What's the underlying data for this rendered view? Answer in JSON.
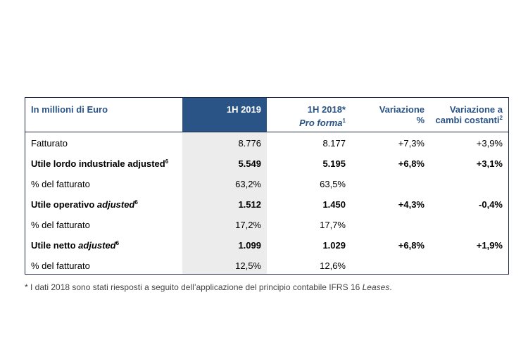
{
  "header": {
    "col0": "In millioni di Euro",
    "col1": "1H 2019",
    "col2_line1": "1H 2018*",
    "col2_line2": "Pro forma",
    "col2_sup": "1",
    "col3_line1": "Variazione",
    "col3_line2": "%",
    "col4_line1": "Variazione a",
    "col4_line2": "cambi costanti",
    "col4_sup": "2"
  },
  "rows": [
    {
      "label": "Fatturato",
      "label_italic": "",
      "sup": "",
      "v2019": "8.776",
      "v2018": "8.177",
      "var": "+7,3%",
      "var_cc": "+3,9%",
      "bold": false
    },
    {
      "label": "Utile lordo industriale adjusted",
      "label_italic": "",
      "sup": "6",
      "v2019": "5.549",
      "v2018": "5.195",
      "var": "+6,8%",
      "var_cc": "+3,1%",
      "bold": true
    },
    {
      "label": "% del fatturato",
      "label_italic": "",
      "sup": "",
      "v2019": "63,2%",
      "v2018": "63,5%",
      "var": "",
      "var_cc": "",
      "bold": false
    },
    {
      "label": "Utile operativo ",
      "label_italic": "adjusted",
      "sup": "6",
      "v2019": "1.512",
      "v2018": "1.450",
      "var": "+4,3%",
      "var_cc": "-0,4%",
      "bold": true
    },
    {
      "label": "% del fatturato",
      "label_italic": "",
      "sup": "",
      "v2019": "17,2%",
      "v2018": "17,7%",
      "var": "",
      "var_cc": "",
      "bold": false
    },
    {
      "label": "Utile netto ",
      "label_italic": "adjusted",
      "sup": "6",
      "v2019": "1.099",
      "v2018": "1.029",
      "var": "+6,8%",
      "var_cc": "+1,9%",
      "bold": true
    },
    {
      "label": "% del fatturato",
      "label_italic": "",
      "sup": "",
      "v2019": "12,5%",
      "v2018": "12,6%",
      "var": "",
      "var_cc": "",
      "bold": false
    }
  ],
  "footnote": {
    "text": "* I dati 2018 sono stati riesposti a seguito dell’applicazione del principio contabile IFRS 16 ",
    "italic": "Leases",
    "end": "."
  },
  "colors": {
    "header_fill": "#2a5386",
    "header_text": "#2a5386",
    "highlight_col": "#ececec"
  }
}
